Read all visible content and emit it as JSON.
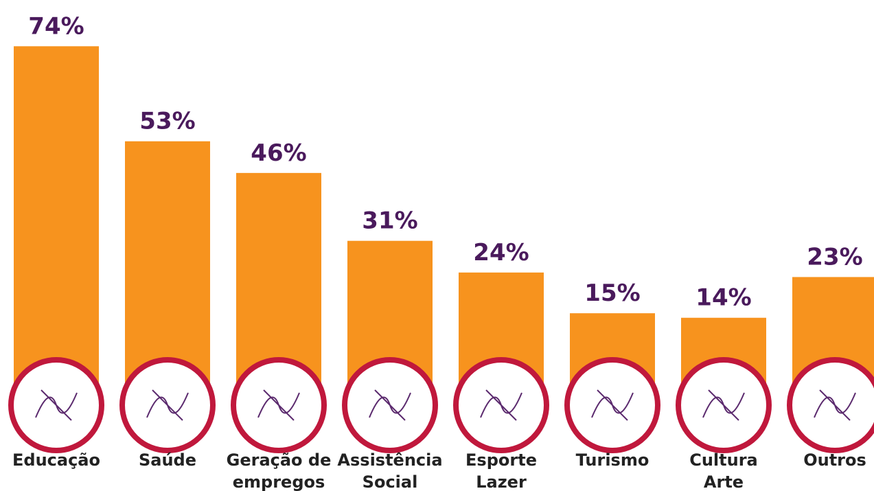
{
  "chart_data": {
    "type": "bar",
    "categories": [
      "Educação",
      "Saúde",
      "Geração de\nempregos",
      "Assistência\nSocial",
      "Esporte\nLazer",
      "Turismo",
      "Cultura\nArte",
      "Outros"
    ],
    "values": [
      74,
      53,
      46,
      31,
      24,
      15,
      14,
      23
    ],
    "value_labels": [
      "74%",
      "53%",
      "46%",
      "31%",
      "24%",
      "15%",
      "14%",
      "23%"
    ],
    "color": "#f7931e"
  }
}
